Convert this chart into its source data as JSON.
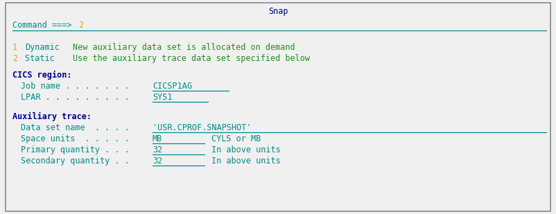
{
  "title": "Snap",
  "title_color": "#00008B",
  "bg_color": "#F0F0F0",
  "border_color": "#888888",
  "cmd_label": "Command ===> ",
  "cmd_value": "2",
  "cmd_label_color": "#008B8B",
  "cmd_value_color": "#DAA520",
  "cmd_line_color": "#008B8B",
  "option1_num": "1",
  "option1_key": "Dynamic",
  "option1_desc": "New auxiliary data set is allocated on demand",
  "option2_num": "2",
  "option2_key": "Static ",
  "option2_desc": "Use the auxiliary trace data set specified below",
  "option_num_color": "#DAA520",
  "option_key_color": "#008B8B",
  "option_desc_color": "#228B22",
  "section1_label": "CICS region:",
  "section1_color": "#00008B",
  "jobname_label": "Job name . . . . . . .",
  "jobname_value": "CICSP1AG",
  "lpar_label": "LPAR . . . . . . . . .",
  "lpar_value": "SYS1",
  "field_label_color": "#008B8B",
  "field_value_color": "#008B8B",
  "field_underline_color": "#008B8B",
  "section2_label": "Auxiliary trace:",
  "section2_color": "#00008B",
  "dsname_label": "Data set name  . . . .",
  "dsname_value": "'USR.CPROF.SNAPSHOT'",
  "spaceunits_label": "Space units  . . . . .",
  "spaceunits_value": "MB",
  "spaceunits_hint": "CYLS or MB",
  "primqty_label": "Primary quantity . . .",
  "primqty_value": "32",
  "primqty_hint": "In above units",
  "secqty_label": "Secondary quantity . .",
  "secqty_value": "32",
  "secqty_hint": "In above units",
  "font_family": "monospace",
  "font_size": 8.5
}
